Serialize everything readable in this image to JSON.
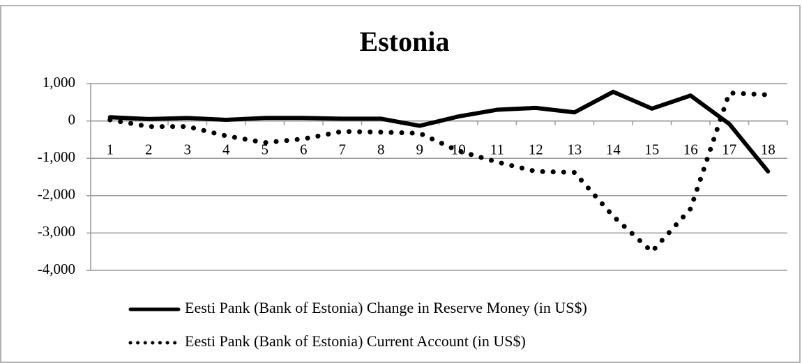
{
  "chart_data": {
    "type": "line",
    "title": "Estonia",
    "categories": [
      "1",
      "2",
      "3",
      "4",
      "5",
      "6",
      "7",
      "8",
      "9",
      "10",
      "11",
      "12",
      "13",
      "14",
      "15",
      "16",
      "17",
      "18"
    ],
    "series": [
      {
        "name": "Eesti Pank (Bank of Estonia) Change in Reserve Money (in US$)",
        "color": "#000000",
        "style": "solid",
        "values": [
          100,
          50,
          80,
          30,
          80,
          80,
          60,
          60,
          -130,
          120,
          300,
          350,
          230,
          780,
          330,
          680,
          -80,
          -1350
        ]
      },
      {
        "name": "Eesti Pank (Bank of Estonia) Current Account (in US$)",
        "color": "#000000",
        "style": "dotted",
        "values": [
          30,
          -150,
          -150,
          -400,
          -580,
          -480,
          -280,
          -300,
          -330,
          -800,
          -1100,
          -1350,
          -1380,
          -2550,
          -3500,
          -2350,
          750,
          700
        ]
      }
    ],
    "ylim": [
      -4000,
      1000
    ],
    "yticks": [
      {
        "value": 1000,
        "label": "1,000"
      },
      0,
      {
        "value": -1000,
        "label": "-1,000"
      },
      {
        "value": -2000,
        "label": "-2,000"
      },
      {
        "value": -3000,
        "label": "-3,000"
      },
      {
        "value": -4000,
        "label": "-4,000"
      }
    ],
    "grid": true,
    "legend": "bottom"
  }
}
